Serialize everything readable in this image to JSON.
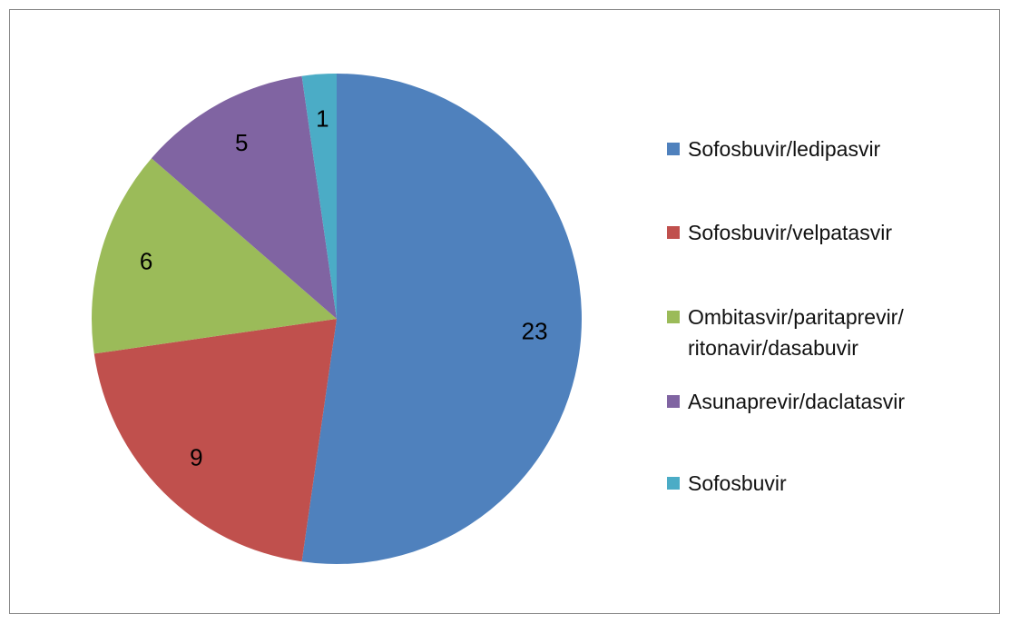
{
  "chart_data": {
    "type": "pie",
    "categories": [
      "Sofosbuvir/ledipasvir",
      "Sofosbuvir/velpatasvir",
      "Ombitasvir/paritaprevir/ritonavir/dasabuvir",
      "Asunaprevir/daclatasvir",
      "Sofosbuvir"
    ],
    "values": [
      23,
      9,
      6,
      5,
      1
    ],
    "colors": [
      "#4f81bd",
      "#c0504d",
      "#9bbb59",
      "#8064a2",
      "#4bacc6"
    ],
    "legend": "right"
  }
}
